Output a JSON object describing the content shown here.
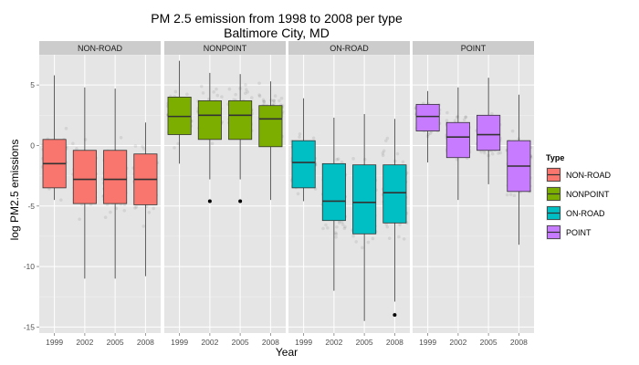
{
  "chart_data": {
    "type": "boxplot",
    "title_line1": "PM 2.5 emission from 1998 to 2008 per type",
    "title_line2": "Baltimore City, MD",
    "xlabel": "Year",
    "ylabel": "log PM2.5 emissions",
    "ylim": [
      -15.5,
      7.5
    ],
    "yticks": [
      -15,
      -10,
      -5,
      0,
      5
    ],
    "categories": [
      "1999",
      "2002",
      "2005",
      "2008"
    ],
    "grid": true,
    "legend": {
      "title": "Type",
      "placement": "right",
      "entries": [
        "NON-ROAD",
        "NONPOINT",
        "ON-ROAD",
        "POINT"
      ]
    },
    "colors": {
      "NON-ROAD": "#f8766d",
      "NONPOINT": "#7cae00",
      "ON-ROAD": "#00bfc4",
      "POINT": "#c77cff",
      "panel_bg": "#e5e5e5",
      "strip_bg": "#cccccc"
    },
    "panels": [
      {
        "name": "NON-ROAD",
        "boxes": [
          {
            "year": "1999",
            "wmin": -4.5,
            "q1": -3.5,
            "median": -1.5,
            "q3": 0.5,
            "wmax": 5.8,
            "outliers": []
          },
          {
            "year": "2002",
            "wmin": -11.0,
            "q1": -4.8,
            "median": -2.8,
            "q3": -0.4,
            "wmax": 4.8,
            "outliers": []
          },
          {
            "year": "2005",
            "wmin": -11.0,
            "q1": -4.8,
            "median": -2.8,
            "q3": -0.4,
            "wmax": 4.7,
            "outliers": []
          },
          {
            "year": "2008",
            "wmin": -10.8,
            "q1": -4.9,
            "median": -2.8,
            "q3": -0.7,
            "wmax": 1.9,
            "outliers": []
          }
        ]
      },
      {
        "name": "NONPOINT",
        "boxes": [
          {
            "year": "1999",
            "wmin": -1.5,
            "q1": 0.9,
            "median": 2.4,
            "q3": 4.0,
            "wmax": 7.0,
            "outliers": []
          },
          {
            "year": "2002",
            "wmin": -2.8,
            "q1": 0.5,
            "median": 2.5,
            "q3": 3.7,
            "wmax": 6.0,
            "outliers": [
              -4.6
            ]
          },
          {
            "year": "2005",
            "wmin": -2.8,
            "q1": 0.5,
            "median": 2.5,
            "q3": 3.7,
            "wmax": 5.9,
            "outliers": [
              -4.6
            ]
          },
          {
            "year": "2008",
            "wmin": -4.5,
            "q1": -0.1,
            "median": 2.2,
            "q3": 3.3,
            "wmax": 5.3,
            "outliers": []
          }
        ]
      },
      {
        "name": "ON-ROAD",
        "boxes": [
          {
            "year": "1999",
            "wmin": -4.6,
            "q1": -3.5,
            "median": -1.4,
            "q3": 0.4,
            "wmax": 3.9,
            "outliers": []
          },
          {
            "year": "2002",
            "wmin": -12.0,
            "q1": -6.2,
            "median": -4.6,
            "q3": -1.5,
            "wmax": 2.3,
            "outliers": []
          },
          {
            "year": "2005",
            "wmin": -14.5,
            "q1": -7.3,
            "median": -4.7,
            "q3": -1.6,
            "wmax": 2.6,
            "outliers": []
          },
          {
            "year": "2008",
            "wmin": -12.9,
            "q1": -6.4,
            "median": -3.9,
            "q3": -1.6,
            "wmax": 2.2,
            "outliers": [
              -14.0
            ]
          }
        ]
      },
      {
        "name": "POINT",
        "boxes": [
          {
            "year": "1999",
            "wmin": -1.4,
            "q1": 1.2,
            "median": 2.4,
            "q3": 3.4,
            "wmax": 4.5,
            "outliers": []
          },
          {
            "year": "2002",
            "wmin": -4.5,
            "q1": -1.0,
            "median": 0.7,
            "q3": 1.9,
            "wmax": 4.8,
            "outliers": []
          },
          {
            "year": "2005",
            "wmin": -3.2,
            "q1": -0.4,
            "median": 0.9,
            "q3": 2.5,
            "wmax": 5.6,
            "outliers": []
          },
          {
            "year": "2008",
            "wmin": -8.2,
            "q1": -3.8,
            "median": -1.7,
            "q3": 0.4,
            "wmax": 4.2,
            "outliers": []
          }
        ]
      }
    ]
  }
}
